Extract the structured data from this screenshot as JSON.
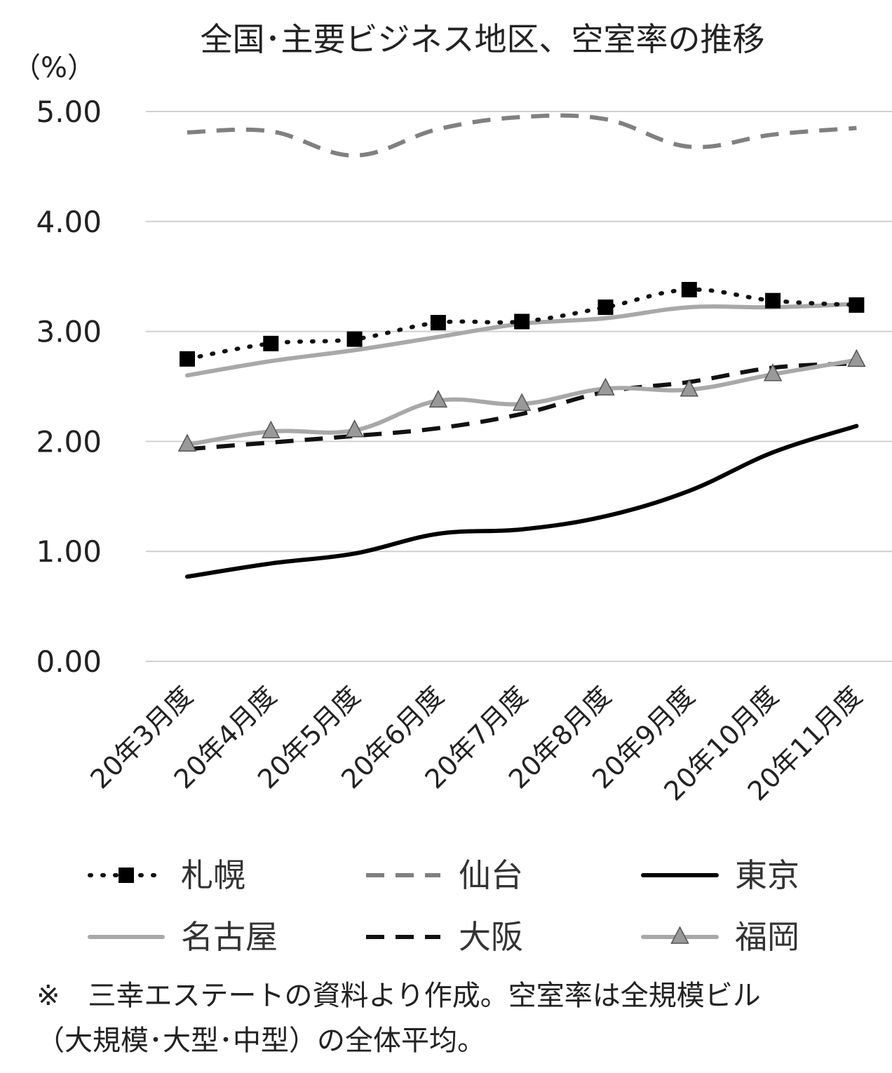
{
  "chart_data": {
    "type": "line",
    "title": "全国･主要ビジネス地区、空室率の推移",
    "ylabel": "（%）",
    "ylim": [
      0,
      5
    ],
    "yticks": [
      "0.00",
      "1.00",
      "2.00",
      "3.00",
      "4.00",
      "5.00"
    ],
    "categories": [
      "20年3月度",
      "20年4月度",
      "20年5月度",
      "20年6月度",
      "20年7月度",
      "20年8月度",
      "20年9月度",
      "20年10月度",
      "20年11月度"
    ],
    "grid": true,
    "legend_position": "bottom",
    "series": [
      {
        "name": "札幌",
        "values": [
          2.75,
          2.89,
          2.93,
          3.08,
          3.09,
          3.22,
          3.38,
          3.28,
          3.24
        ],
        "style": "dotted",
        "marker": "square",
        "color": "#111111"
      },
      {
        "name": "仙台",
        "values": [
          4.81,
          4.82,
          4.6,
          4.84,
          4.95,
          4.93,
          4.68,
          4.79,
          4.85
        ],
        "style": "dashed",
        "marker": "none",
        "color": "#808080"
      },
      {
        "name": "東京",
        "values": [
          0.77,
          0.89,
          0.98,
          1.16,
          1.2,
          1.32,
          1.55,
          1.9,
          2.14
        ],
        "style": "solid",
        "marker": "none",
        "color": "#000000"
      },
      {
        "name": "名古屋",
        "values": [
          2.6,
          2.73,
          2.83,
          2.95,
          3.07,
          3.12,
          3.22,
          3.22,
          3.25
        ],
        "style": "solid",
        "marker": "none",
        "color": "#a8a8a8"
      },
      {
        "name": "大阪",
        "values": [
          1.93,
          1.99,
          2.05,
          2.12,
          2.25,
          2.45,
          2.54,
          2.67,
          2.71
        ],
        "style": "dashed",
        "marker": "none",
        "color": "#111111"
      },
      {
        "name": "福岡",
        "values": [
          1.97,
          2.09,
          2.1,
          2.37,
          2.34,
          2.48,
          2.47,
          2.61,
          2.74
        ],
        "style": "solid",
        "marker": "triangle",
        "color": "#a8a8a8"
      }
    ]
  },
  "note": {
    "line1": "※　三幸エステートの資料より作成。空室率は全規模ビル",
    "line2": "（大規模･大型･中型）の全体平均。"
  }
}
